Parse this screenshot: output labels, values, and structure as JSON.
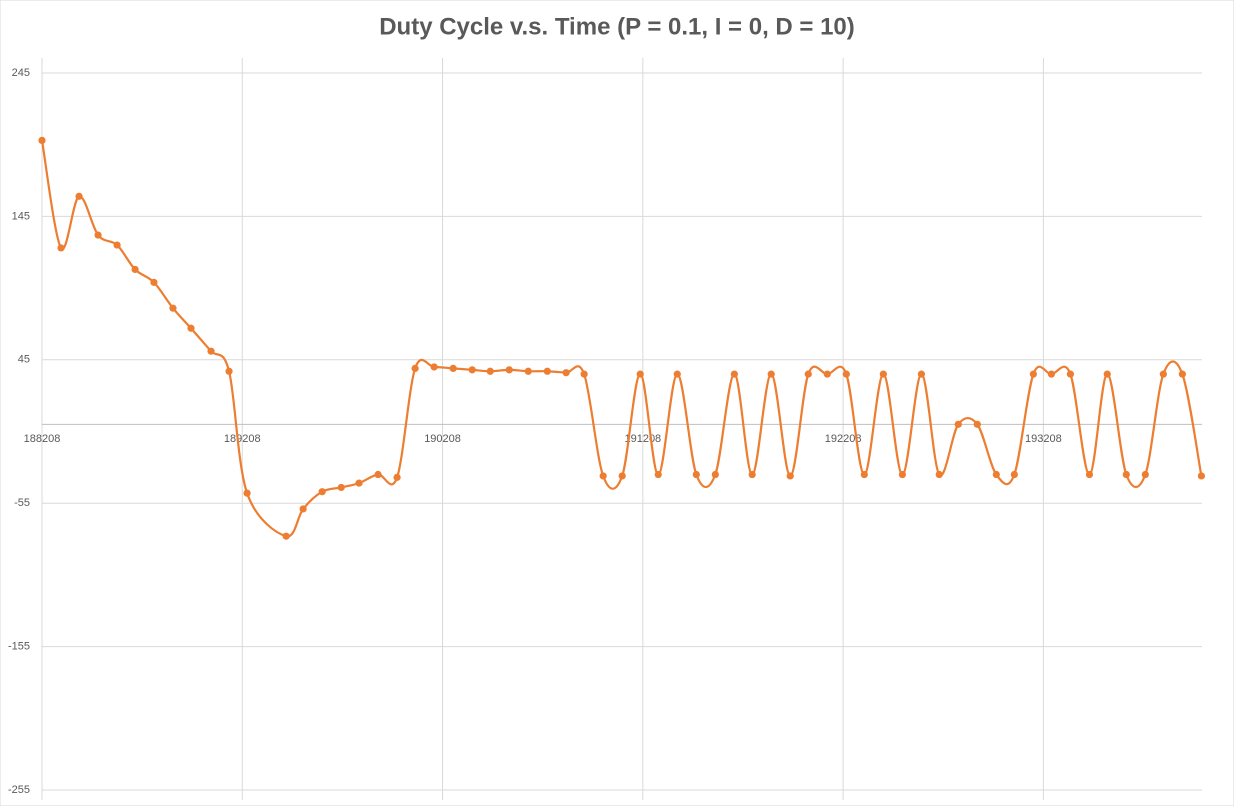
{
  "chart_data": {
    "type": "scatter-smooth",
    "title": "Duty Cycle v.s. Time (P = 0.1, I = 0, D = 10)",
    "series": [
      {
        "color": "#ed7d31",
        "x": [
          188208,
          188303,
          188393,
          188488,
          188583,
          188673,
          188767,
          188862,
          188952,
          189052,
          189142,
          189232,
          189427,
          189512,
          189607,
          189702,
          189791,
          189886,
          189981,
          190071,
          190166,
          190261,
          190356,
          190446,
          190541,
          190636,
          190731,
          190825,
          190915,
          191010,
          191105,
          191195,
          191285,
          191380,
          191475,
          191570,
          191665,
          191754,
          191849,
          191944,
          192034,
          192129,
          192224,
          192314,
          192409,
          192504,
          192599,
          192688,
          192783,
          192878,
          192973,
          193063,
          193158,
          193248,
          193343,
          193438,
          193527,
          193622,
          193717,
          193807,
          193902,
          193997
        ],
        "values": [
          198,
          123,
          159,
          132,
          125,
          108,
          99,
          81,
          67,
          51,
          37,
          -48,
          -78,
          -59,
          -47,
          -44,
          -41,
          -35,
          -37,
          39,
          40,
          39,
          38,
          37,
          38,
          37,
          37,
          36,
          35,
          -36,
          -36,
          35,
          -35,
          35,
          -35,
          -35,
          35,
          -35,
          35,
          -36,
          35,
          35,
          35,
          -35,
          35,
          -35,
          35,
          -35,
          0,
          0,
          -35,
          -35,
          35,
          35,
          35,
          -35,
          35,
          -35,
          -35,
          35,
          35,
          -36
        ]
      }
    ],
    "xlim": [
      188208,
      194000
    ],
    "xticks": [
      188208,
      189208,
      190208,
      191208,
      192208,
      193208
    ],
    "ylim": [
      -255,
      245
    ],
    "yticks": [
      -255,
      -155,
      -55,
      45,
      145,
      245
    ],
    "grid": true
  }
}
